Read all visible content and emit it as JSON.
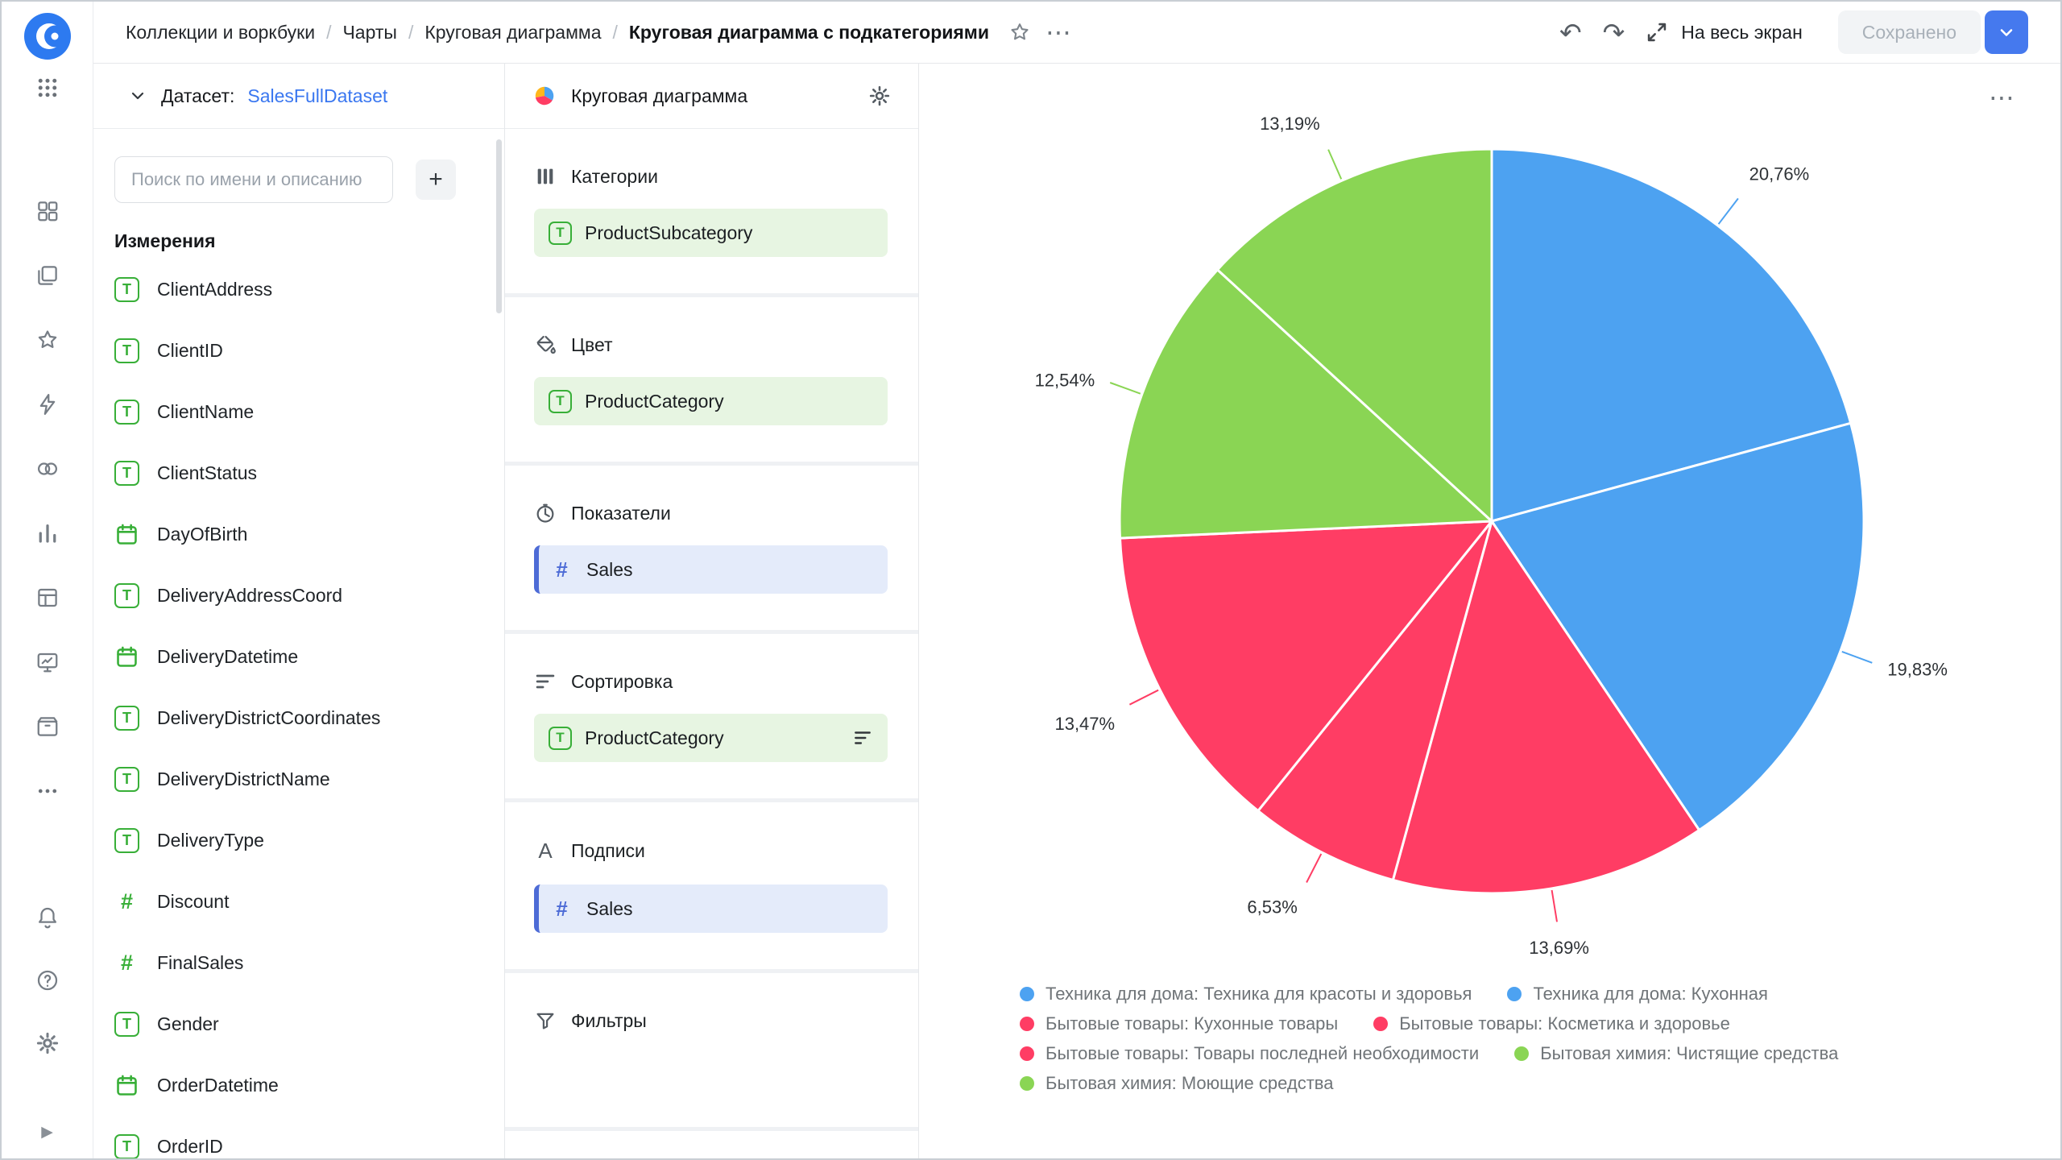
{
  "header": {
    "breadcrumbs": [
      "Коллекции и воркбуки",
      "Чарты",
      "Круговая диаграмма",
      "Круговая диаграмма с подкатегориями"
    ],
    "fullscreen_label": "На весь экран",
    "saved_button_label": "Сохранено"
  },
  "icons": {
    "undo": "↶",
    "redo": "↷",
    "more": "⋯",
    "chart_more": "⋯",
    "plus": "+",
    "collapse": "▶",
    "labels_section_glyph": "A"
  },
  "dataset_panel": {
    "dataset_label": "Датасет:",
    "dataset_name": "SalesFullDataset",
    "search_placeholder": "Поиск по имени и описанию",
    "dimensions_title": "Измерения",
    "fields": [
      {
        "name": "ClientAddress",
        "type": "string"
      },
      {
        "name": "ClientID",
        "type": "string"
      },
      {
        "name": "ClientName",
        "type": "string"
      },
      {
        "name": "ClientStatus",
        "type": "string"
      },
      {
        "name": "DayOfBirth",
        "type": "date"
      },
      {
        "name": "DeliveryAddressCoord",
        "type": "string"
      },
      {
        "name": "DeliveryDatetime",
        "type": "date"
      },
      {
        "name": "DeliveryDistrictCoordinates",
        "type": "string"
      },
      {
        "name": "DeliveryDistrictName",
        "type": "string"
      },
      {
        "name": "DeliveryType",
        "type": "string"
      },
      {
        "name": "Discount",
        "type": "number"
      },
      {
        "name": "FinalSales",
        "type": "number"
      },
      {
        "name": "Gender",
        "type": "string"
      },
      {
        "name": "OrderDatetime",
        "type": "date"
      },
      {
        "name": "OrderID",
        "type": "string"
      }
    ]
  },
  "config_panel": {
    "chart_type_label": "Круговая диаграмма",
    "sections": {
      "categories": {
        "title": "Категории",
        "field": "ProductSubcategory"
      },
      "color": {
        "title": "Цвет",
        "field": "ProductCategory"
      },
      "measures": {
        "title": "Показатели",
        "field": "Sales"
      },
      "sort": {
        "title": "Сортировка",
        "field": "ProductCategory"
      },
      "labels": {
        "title": "Подписи",
        "field": "Sales"
      },
      "filters": {
        "title": "Фильтры"
      }
    }
  },
  "chart_data": {
    "type": "pie",
    "legend_position": "bottom",
    "start_angle_deg": 0,
    "direction": "clockwise",
    "value_format": "percent",
    "slices": [
      {
        "label": "Техника для дома: Техника для красоты и здоровья",
        "value": 20.76,
        "display": "20,76%",
        "color": "#4DA2F1"
      },
      {
        "label": "Техника для дома: Кухонная",
        "value": 19.83,
        "display": "19,83%",
        "color": "#4DA2F1"
      },
      {
        "label": "Бытовые товары: Кухонные товары",
        "value": 13.69,
        "display": "13,69%",
        "color": "#FF3D64"
      },
      {
        "label": "Бытовые товары: Косметика и здоровье",
        "value": 6.53,
        "display": "6,53%",
        "color": "#FF3D64"
      },
      {
        "label": "Бытовые товары: Товары последней необходимости",
        "value": 13.47,
        "display": "13,47%",
        "color": "#FF3D64"
      },
      {
        "label": "Бытовая химия: Чистящие средства",
        "value": 12.54,
        "display": "12,54%",
        "color": "#8AD554"
      },
      {
        "label": "Бытовая химия: Моющие средства",
        "value": 13.19,
        "display": "13,19%",
        "color": "#8AD554"
      }
    ]
  },
  "ui_colors": {
    "accent_blue": "#4579EE",
    "link_blue": "#3A77F0",
    "field_green": "#38AF38",
    "chip_green_bg": "#E7F5E2",
    "chip_blue_bg": "#E4EBFA",
    "chip_blue_accent": "#4D6BD6"
  }
}
